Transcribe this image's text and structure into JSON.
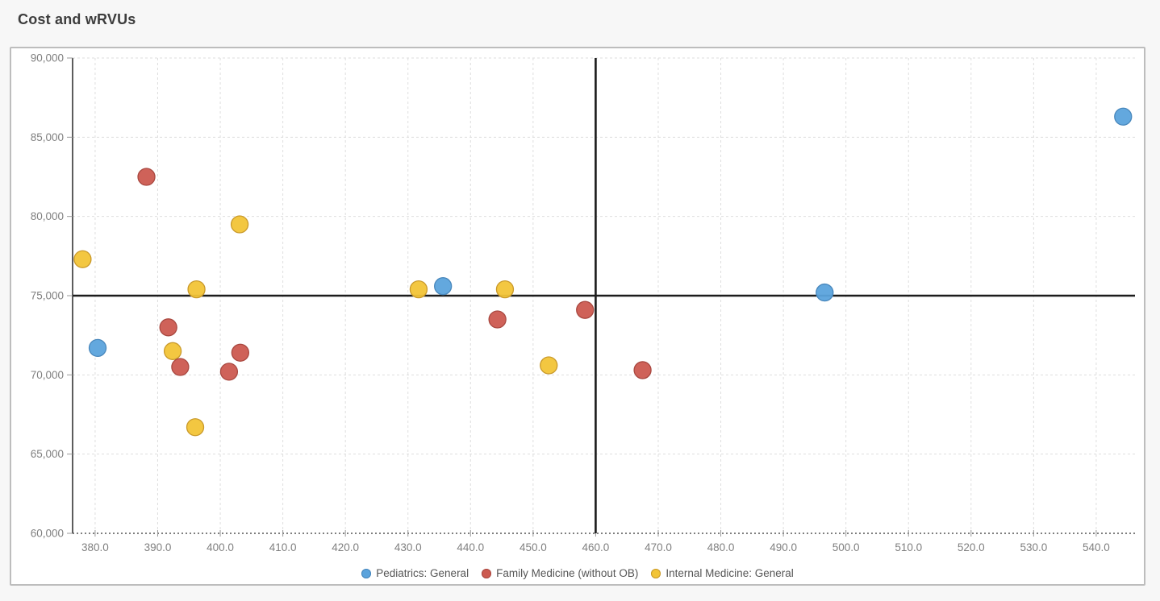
{
  "page": {
    "title": "Cost and wRVUs"
  },
  "colors": {
    "page_background": "#F7F7F7",
    "panel_background": "#FFFFFF",
    "panel_border": "#BDBDBD",
    "grid_line": "#DEDEDE",
    "axis_line": "#333333",
    "reference_line": "#1C1C1C",
    "tick_label": "#808080",
    "legend_text": "#555555"
  },
  "chart_data": {
    "type": "scatter",
    "title": "Cost and wRVUs",
    "xlabel": "",
    "ylabel": "",
    "xlim": [
      376.4,
      546.2
    ],
    "ylim": [
      60000,
      90000
    ],
    "x_ticks": [
      380,
      390,
      400,
      410,
      420,
      430,
      440,
      450,
      460,
      470,
      480,
      490,
      500,
      510,
      520,
      530,
      540
    ],
    "y_ticks": [
      60000,
      65000,
      70000,
      75000,
      80000,
      85000,
      90000
    ],
    "x_tick_labels": [
      "380.0",
      "390.0",
      "400.0",
      "410.0",
      "420.0",
      "430.0",
      "440.0",
      "450.0",
      "460.0",
      "470.0",
      "480.0",
      "490.0",
      "500.0",
      "510.0",
      "520.0",
      "530.0",
      "540.0"
    ],
    "y_tick_labels": [
      "60,000",
      "65,000",
      "70,000",
      "75,000",
      "80,000",
      "85,000",
      "90,000"
    ],
    "grid": true,
    "legend_position": "bottom-center",
    "reference_lines": {
      "x": 460.0,
      "y": 75000
    },
    "marker_radius": 10.5,
    "draw_order": [
      0,
      2,
      1
    ],
    "series": [
      {
        "name": "Pediatrics: General",
        "color": "#5BA3DC",
        "stroke": "#4887BC",
        "points": [
          [
            380.4,
            71700
          ],
          [
            435.6,
            75600
          ],
          [
            496.6,
            75200
          ],
          [
            544.3,
            86300
          ]
        ]
      },
      {
        "name": "Family Medicine (without OB)",
        "color": "#CC5A50",
        "stroke": "#A94840",
        "points": [
          [
            388.2,
            82500
          ],
          [
            391.7,
            73000
          ],
          [
            393.6,
            70500
          ],
          [
            401.4,
            70200
          ],
          [
            403.2,
            71400
          ],
          [
            444.3,
            73500
          ],
          [
            458.3,
            74100
          ],
          [
            467.5,
            70300
          ]
        ]
      },
      {
        "name": "Internal Medicine: General",
        "color": "#F2C437",
        "stroke": "#C9992A",
        "points": [
          [
            378.0,
            77300
          ],
          [
            392.4,
            71500
          ],
          [
            396.2,
            75400
          ],
          [
            396.0,
            66700
          ],
          [
            403.1,
            79500
          ],
          [
            431.7,
            75400
          ],
          [
            445.5,
            75400
          ],
          [
            452.5,
            70600
          ]
        ]
      }
    ]
  }
}
